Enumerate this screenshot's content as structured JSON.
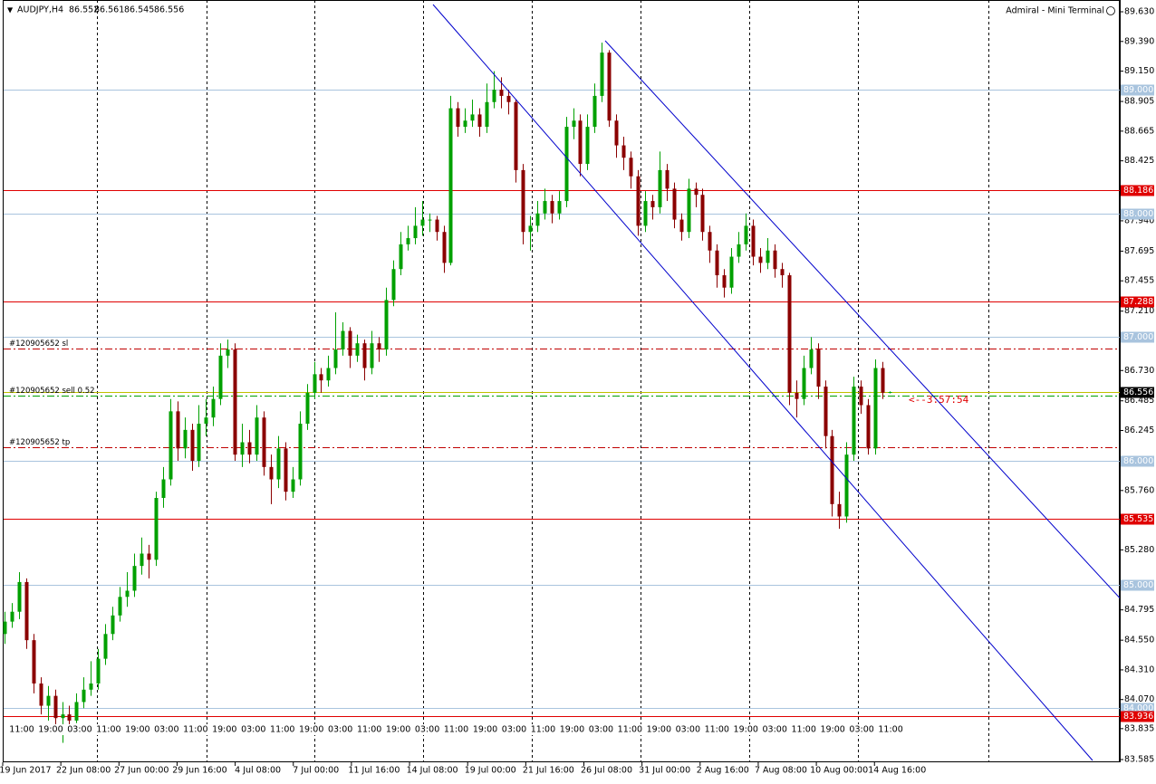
{
  "chart_data": {
    "type": "candlestick",
    "symbol": "AUDJPY,H4",
    "terminal": "Admiral - Mini Terminal",
    "countdown": "<--3:57:54",
    "up_color": "#00a000",
    "down_color": "#8b0000",
    "ylim": [
      83.585,
      89.63
    ],
    "yticks": [
      {
        "value": 89.63,
        "label": "89.630"
      },
      {
        "value": 89.39,
        "label": "89.390"
      },
      {
        "value": 89.15,
        "label": "89.150"
      },
      {
        "value": 88.905,
        "label": "88.905"
      },
      {
        "value": 88.665,
        "label": "88.665"
      },
      {
        "value": 88.425,
        "label": "88.425"
      },
      {
        "value": 87.94,
        "label": "87.940"
      },
      {
        "value": 87.695,
        "label": "87.695"
      },
      {
        "value": 87.455,
        "label": "87.455"
      },
      {
        "value": 87.21,
        "label": "87.210"
      },
      {
        "value": 86.73,
        "label": "86.730"
      },
      {
        "value": 86.485,
        "label": "86.485"
      },
      {
        "value": 86.245,
        "label": "86.245"
      },
      {
        "value": 85.76,
        "label": "85.760"
      },
      {
        "value": 85.28,
        "label": "85.280"
      },
      {
        "value": 84.795,
        "label": "84.795"
      },
      {
        "value": 84.55,
        "label": "84.550"
      },
      {
        "value": 84.31,
        "label": "84.310"
      },
      {
        "value": 84.07,
        "label": "84.070"
      },
      {
        "value": 83.835,
        "label": "83.835"
      },
      {
        "value": 83.585,
        "label": "83.585"
      }
    ],
    "levels": [
      {
        "value": 89.0,
        "label": "89.000"
      },
      {
        "value": 88.0,
        "label": "88.000"
      },
      {
        "value": 87.0,
        "label": "87.000"
      },
      {
        "value": 86.0,
        "label": "86.000"
      },
      {
        "value": 85.0,
        "label": "85.000"
      },
      {
        "value": 84.0,
        "label": "84.000"
      }
    ],
    "level_color": "#a9c4de",
    "resistance": [
      {
        "value": 88.186,
        "label": "88.186"
      },
      {
        "value": 87.288,
        "label": "87.288"
      },
      {
        "value": 85.535,
        "label": "85.535"
      },
      {
        "value": 83.936,
        "label": "83.936"
      }
    ],
    "resistance_color": "#e00000",
    "orders": [
      {
        "label": "#120905652 sl",
        "value": 86.908,
        "color": "#c00000"
      },
      {
        "label": "#120905652 sell 0.52",
        "value": 86.527,
        "color": "#00a000"
      },
      {
        "label": "#120905652 tp",
        "value": 86.11,
        "color": "#c00000"
      }
    ],
    "time_labels": [
      "11:00",
      "19:00",
      "03:00",
      "11:00",
      "19:00",
      "03:00",
      "11:00",
      "19:00",
      "03:00",
      "11:00",
      "19:00",
      "03:00",
      "11:00",
      "19:00",
      "03:00",
      "11:00",
      "19:00",
      "03:00",
      "11:00",
      "19:00",
      "03:00",
      "11:00",
      "19:00",
      "03:00",
      "11:00",
      "19:00",
      "03:00",
      "11:00",
      "19:00",
      "03:00",
      "11:00"
    ],
    "date_labels": [
      "19 Jun 2017",
      "22 Jun 08:00",
      "27 Jun 00:00",
      "29 Jun 16:00",
      "4 Jul 08:00",
      "7 Jul 00:00",
      "11 Jul 16:00",
      "14 Jul 08:00",
      "19 Jul 00:00",
      "21 Jul 16:00",
      "26 Jul 08:00",
      "31 Jul 00:00",
      "2 Aug 16:00",
      "7 Aug 08:00",
      "10 Aug 00:00",
      "14 Aug 16:00"
    ],
    "candles": [
      [
        84.6,
        84.78,
        84.52,
        84.7
      ],
      [
        84.7,
        84.85,
        84.65,
        84.78
      ],
      [
        84.78,
        85.1,
        84.72,
        85.02
      ],
      [
        85.02,
        85.05,
        84.48,
        84.55
      ],
      [
        84.55,
        84.6,
        84.12,
        84.2
      ],
      [
        84.2,
        84.25,
        83.95,
        84.02
      ],
      [
        84.02,
        84.18,
        83.9,
        84.1
      ],
      [
        84.1,
        84.15,
        83.8,
        83.92
      ],
      [
        83.92,
        84.05,
        83.72,
        83.95
      ],
      [
        83.95,
        84.02,
        83.85,
        83.9
      ],
      [
        83.9,
        84.12,
        83.88,
        84.05
      ],
      [
        84.05,
        84.25,
        84.0,
        84.15
      ],
      [
        84.15,
        84.38,
        84.1,
        84.2
      ],
      [
        84.2,
        84.48,
        84.15,
        84.4
      ],
      [
        84.4,
        84.68,
        84.35,
        84.6
      ],
      [
        84.6,
        84.82,
        84.55,
        84.75
      ],
      [
        84.75,
        84.98,
        84.7,
        84.9
      ],
      [
        84.9,
        85.1,
        84.82,
        84.95
      ],
      [
        84.95,
        85.25,
        84.9,
        85.15
      ],
      [
        85.15,
        85.38,
        85.08,
        85.25
      ],
      [
        85.25,
        85.32,
        85.05,
        85.2
      ],
      [
        85.2,
        85.75,
        85.15,
        85.7
      ],
      [
        85.7,
        85.95,
        85.62,
        85.85
      ],
      [
        85.85,
        86.5,
        85.8,
        86.4
      ],
      [
        86.4,
        86.48,
        86.0,
        86.1
      ],
      [
        86.1,
        86.35,
        86.02,
        86.25
      ],
      [
        86.25,
        86.3,
        85.92,
        86.0
      ],
      [
        86.0,
        86.45,
        85.95,
        86.3
      ],
      [
        86.3,
        86.5,
        86.2,
        86.35
      ],
      [
        86.35,
        86.6,
        86.28,
        86.5
      ],
      [
        86.5,
        86.95,
        86.45,
        86.85
      ],
      [
        86.85,
        86.98,
        86.75,
        86.9
      ],
      [
        86.9,
        86.95,
        86.0,
        86.05
      ],
      [
        86.05,
        86.3,
        85.95,
        86.15
      ],
      [
        86.15,
        86.25,
        85.98,
        86.05
      ],
      [
        86.05,
        86.45,
        86.0,
        86.35
      ],
      [
        86.35,
        86.4,
        85.88,
        85.95
      ],
      [
        85.95,
        86.05,
        85.65,
        85.85
      ],
      [
        85.85,
        86.2,
        85.78,
        86.1
      ],
      [
        86.1,
        86.15,
        85.68,
        85.75
      ],
      [
        85.75,
        85.95,
        85.7,
        85.85
      ],
      [
        85.85,
        86.4,
        85.8,
        86.3
      ],
      [
        86.3,
        86.62,
        86.25,
        86.55
      ],
      [
        86.55,
        86.8,
        86.5,
        86.7
      ],
      [
        86.7,
        86.75,
        86.55,
        86.65
      ],
      [
        86.65,
        86.85,
        86.6,
        86.75
      ],
      [
        86.75,
        87.2,
        86.7,
        86.9
      ],
      [
        86.9,
        87.12,
        86.85,
        87.05
      ],
      [
        87.05,
        87.08,
        86.75,
        86.85
      ],
      [
        86.85,
        87.02,
        86.8,
        86.95
      ],
      [
        86.95,
        86.98,
        86.65,
        86.75
      ],
      [
        86.75,
        87.05,
        86.7,
        86.95
      ],
      [
        86.95,
        87.0,
        86.8,
        86.9
      ],
      [
        86.9,
        87.4,
        86.85,
        87.3
      ],
      [
        87.3,
        87.62,
        87.25,
        87.55
      ],
      [
        87.55,
        87.85,
        87.5,
        87.75
      ],
      [
        87.75,
        87.9,
        87.7,
        87.8
      ],
      [
        87.8,
        88.05,
        87.75,
        87.9
      ],
      [
        87.9,
        88.1,
        87.82,
        87.95
      ],
      [
        87.95,
        88.0,
        87.85,
        87.95
      ],
      [
        87.95,
        87.98,
        87.78,
        87.85
      ],
      [
        87.85,
        87.9,
        87.52,
        87.6
      ],
      [
        87.6,
        88.95,
        87.58,
        88.85
      ],
      [
        88.85,
        88.9,
        88.62,
        88.7
      ],
      [
        88.7,
        88.85,
        88.65,
        88.75
      ],
      [
        88.75,
        88.92,
        88.7,
        88.8
      ],
      [
        88.8,
        88.85,
        88.62,
        88.7
      ],
      [
        88.7,
        89.05,
        88.65,
        88.9
      ],
      [
        88.9,
        89.15,
        88.85,
        89.0
      ],
      [
        89.0,
        89.1,
        88.85,
        88.95
      ],
      [
        88.95,
        89.0,
        88.8,
        88.9
      ],
      [
        88.9,
        88.92,
        88.25,
        88.35
      ],
      [
        88.35,
        88.4,
        87.75,
        87.85
      ],
      [
        87.85,
        87.98,
        87.7,
        87.9
      ],
      [
        87.9,
        88.1,
        87.85,
        88.0
      ],
      [
        88.0,
        88.2,
        87.95,
        88.1
      ],
      [
        88.1,
        88.15,
        87.92,
        88.0
      ],
      [
        88.0,
        88.18,
        87.95,
        88.1
      ],
      [
        88.1,
        88.78,
        88.05,
        88.7
      ],
      [
        88.7,
        88.85,
        88.6,
        88.75
      ],
      [
        88.75,
        88.8,
        88.3,
        88.4
      ],
      [
        88.4,
        88.8,
        88.35,
        88.7
      ],
      [
        88.7,
        89.05,
        88.65,
        88.95
      ],
      [
        88.95,
        89.38,
        88.9,
        89.3
      ],
      [
        89.3,
        89.32,
        88.7,
        88.75
      ],
      [
        88.75,
        88.8,
        88.45,
        88.55
      ],
      [
        88.55,
        88.62,
        88.35,
        88.45
      ],
      [
        88.45,
        88.5,
        88.2,
        88.3
      ],
      [
        88.3,
        88.35,
        87.82,
        87.9
      ],
      [
        87.9,
        88.18,
        87.85,
        88.1
      ],
      [
        88.1,
        88.15,
        87.95,
        88.05
      ],
      [
        88.05,
        88.5,
        88.0,
        88.35
      ],
      [
        88.35,
        88.4,
        88.1,
        88.2
      ],
      [
        88.2,
        88.25,
        87.88,
        87.95
      ],
      [
        87.95,
        88.0,
        87.78,
        87.85
      ],
      [
        87.85,
        88.28,
        87.8,
        88.2
      ],
      [
        88.2,
        88.25,
        88.05,
        88.15
      ],
      [
        88.15,
        88.2,
        87.78,
        87.85
      ],
      [
        87.85,
        87.9,
        87.6,
        87.7
      ],
      [
        87.7,
        87.75,
        87.4,
        87.5
      ],
      [
        87.5,
        87.55,
        87.32,
        87.4
      ],
      [
        87.4,
        87.72,
        87.35,
        87.65
      ],
      [
        87.65,
        87.85,
        87.6,
        87.75
      ],
      [
        87.75,
        88.0,
        87.7,
        87.9
      ],
      [
        87.9,
        87.95,
        87.58,
        87.65
      ],
      [
        87.65,
        87.72,
        87.52,
        87.6
      ],
      [
        87.6,
        87.8,
        87.55,
        87.7
      ],
      [
        87.7,
        87.75,
        87.48,
        87.55
      ],
      [
        87.55,
        87.6,
        87.4,
        87.5
      ],
      [
        87.5,
        87.52,
        86.45,
        86.55
      ],
      [
        86.55,
        86.65,
        86.35,
        86.5
      ],
      [
        86.5,
        86.85,
        86.45,
        86.75
      ],
      [
        86.75,
        87.0,
        86.7,
        86.9
      ],
      [
        86.9,
        86.95,
        86.5,
        86.6
      ],
      [
        86.6,
        86.65,
        86.1,
        86.2
      ],
      [
        86.2,
        86.25,
        85.55,
        85.65
      ],
      [
        85.65,
        85.75,
        85.45,
        85.55
      ],
      [
        85.55,
        86.15,
        85.5,
        86.05
      ],
      [
        86.05,
        86.68,
        86.0,
        86.6
      ],
      [
        86.6,
        86.65,
        86.38,
        86.45
      ],
      [
        86.45,
        86.5,
        86.05,
        86.1
      ],
      [
        86.1,
        86.82,
        86.05,
        86.75
      ],
      [
        86.75,
        86.8,
        86.5,
        86.55
      ],
      [
        86.552,
        86.561,
        86.545,
        86.556
      ]
    ]
  }
}
